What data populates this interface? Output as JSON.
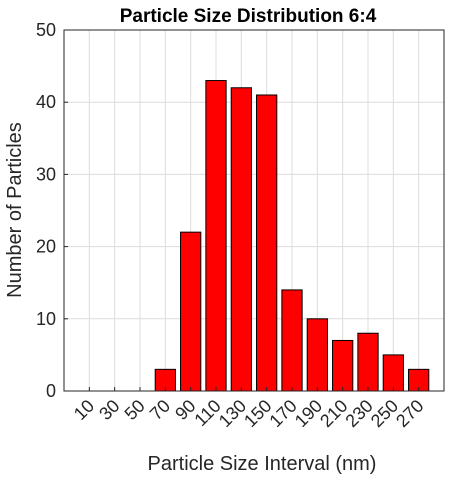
{
  "chart_data": {
    "type": "bar",
    "title": "Particle Size Distribution 6:4",
    "xlabel": "Particle Size Interval (nm)",
    "ylabel": "Number of Particles",
    "categories": [
      "10",
      "30",
      "50",
      "70",
      "90",
      "110",
      "130",
      "150",
      "170",
      "190",
      "210",
      "230",
      "250",
      "270"
    ],
    "values": [
      0,
      0,
      0,
      3,
      22,
      43,
      42,
      41,
      14,
      10,
      7,
      8,
      5,
      3
    ],
    "ylim": [
      0,
      50
    ],
    "yticks": [
      "0",
      "10",
      "20",
      "30",
      "40",
      "50"
    ],
    "grid": true,
    "bar_color": "#ff0000"
  }
}
